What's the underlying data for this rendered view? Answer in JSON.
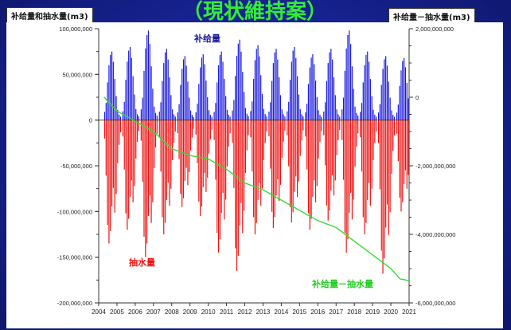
{
  "header": {
    "title": "（現状維持案）",
    "left_box": "补给量和抽水量(m3)",
    "right_box": "补给量－抽水量(m3)"
  },
  "colors": {
    "recharge": "#1a1add",
    "pumping": "#ee1111",
    "balance": "#33dd33",
    "background": "#16228f"
  },
  "chart_data": {
    "type": "bar",
    "title": "（現状維持案）",
    "left_axis": {
      "label": "补给量和抽水量(m3)",
      "ylim": [
        -200000000,
        100000000
      ],
      "ticks": [
        100000000,
        50000000,
        0,
        -50000000,
        -100000000,
        -150000000,
        -200000000
      ],
      "tick_labels": [
        "100,000,000",
        "50,000,000",
        "0",
        "-50,000,000",
        "-100,000,000",
        "-150,000,000",
        "-200,000,000"
      ]
    },
    "right_axis": {
      "label": "补给量－抽水量(m3)",
      "ylim": [
        -6000000000,
        2000000000
      ],
      "ticks": [
        2000000000,
        0,
        -2000000000,
        -4000000000,
        -6000000000
      ],
      "tick_labels": [
        "2,000,000,000",
        "0",
        "-2,000,000,000",
        "-4,000,000,000",
        "-6,000,000,000"
      ]
    },
    "x_axis": {
      "range": [
        2004,
        2021
      ],
      "tick_labels": [
        "2004",
        "2005",
        "2006",
        "2007",
        "2008",
        "2009",
        "2010",
        "2011",
        "2012",
        "2013",
        "2014",
        "2015",
        "2016",
        "2017",
        "2018",
        "2019",
        "2020",
        "2021"
      ]
    },
    "series": [
      {
        "name": "补给量",
        "axis": "left",
        "seasonal_peaks_by_year": [
          75000000,
          80000000,
          98000000,
          78000000,
          70000000,
          72000000,
          75000000,
          88000000,
          82000000,
          78000000,
          80000000,
          72000000,
          78000000,
          98000000,
          75000000,
          70000000,
          68000000
        ]
      },
      {
        "name": "抽水量",
        "axis": "left",
        "seasonal_troughs_by_year": [
          -135000000,
          -120000000,
          -150000000,
          -125000000,
          -95000000,
          -105000000,
          -145000000,
          -165000000,
          -125000000,
          -118000000,
          -112000000,
          -120000000,
          -110000000,
          -145000000,
          -125000000,
          -168000000,
          -100000000
        ]
      },
      {
        "name": "补给量－抽水量",
        "axis": "right",
        "x": [
          2004.3,
          2005,
          2006,
          2007,
          2008,
          2009,
          2010,
          2011,
          2012,
          2013,
          2014,
          2015,
          2016,
          2017,
          2018,
          2019,
          2020,
          2020.5,
          2021
        ],
        "y": [
          0,
          -400000000,
          -700000000,
          -1000000000,
          -1500000000,
          -1700000000,
          -1800000000,
          -2100000000,
          -2500000000,
          -2700000000,
          -3000000000,
          -3300000000,
          -3600000000,
          -3800000000,
          -4200000000,
          -4600000000,
          -5000000000,
          -5300000000,
          -5350000000
        ]
      }
    ],
    "annotations": {
      "recharge_label": "补给量",
      "pumping_label": "抽水量",
      "balance_label": "补给量－抽水量"
    }
  }
}
